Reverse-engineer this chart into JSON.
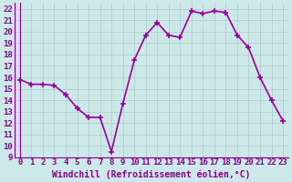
{
  "hours": [
    0,
    1,
    2,
    3,
    4,
    5,
    6,
    7,
    8,
    9,
    10,
    11,
    12,
    13,
    14,
    15,
    16,
    17,
    18,
    19,
    20,
    21,
    22,
    23
  ],
  "values": [
    15.8,
    15.4,
    15.4,
    15.3,
    14.5,
    13.3,
    12.5,
    12.5,
    9.5,
    13.7,
    17.5,
    19.7,
    20.8,
    19.7,
    19.5,
    21.8,
    21.6,
    21.8,
    21.7,
    19.7,
    18.6,
    16.0,
    14.0,
    12.2
  ],
  "line_color": "#990099",
  "marker_color": "#990099",
  "bg_color": "#cce8e8",
  "grid_color": "#aacccc",
  "xlabel": "Windchill (Refroidissement éolien,°C)",
  "ylim": [
    9,
    22.5
  ],
  "xlim": [
    -0.5,
    23.5
  ],
  "yticks": [
    9,
    10,
    11,
    12,
    13,
    14,
    15,
    16,
    17,
    18,
    19,
    20,
    21,
    22
  ],
  "xticks": [
    0,
    1,
    2,
    3,
    4,
    5,
    6,
    7,
    8,
    9,
    10,
    11,
    12,
    13,
    14,
    15,
    16,
    17,
    18,
    19,
    20,
    21,
    22,
    23
  ],
  "label_fontsize": 7.0,
  "tick_fontsize": 6.5,
  "line_width": 1.2,
  "marker_size": 4
}
